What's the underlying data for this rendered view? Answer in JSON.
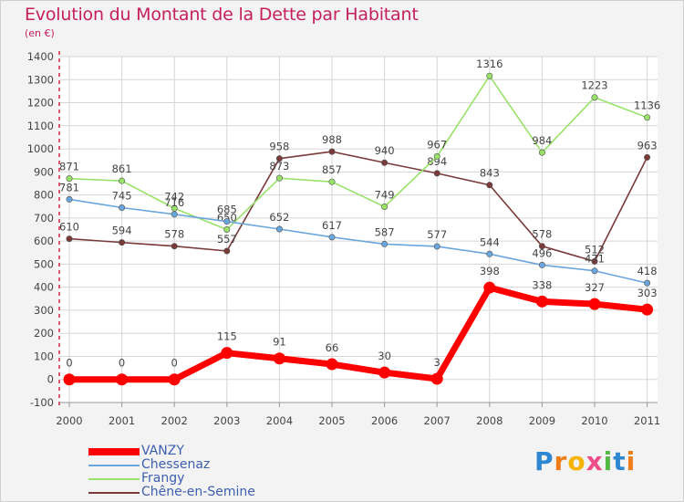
{
  "title": "Evolution du Montant de la Dette par Habitant",
  "unit": "(en €)",
  "logo_text": "Proxiti",
  "chart_data": {
    "type": "line",
    "x": [
      "2000",
      "2001",
      "2002",
      "2003",
      "2004",
      "2005",
      "2006",
      "2007",
      "2008",
      "2009",
      "2010",
      "2011"
    ],
    "ylim": [
      -100,
      1400
    ],
    "yticks": [
      -100,
      0,
      100,
      200,
      300,
      400,
      500,
      600,
      700,
      800,
      900,
      1000,
      1100,
      1200,
      1300,
      1400
    ],
    "grid": true,
    "legend_position": "bottom-left",
    "series": [
      {
        "name": "VANZY",
        "color": "#ff0000",
        "values": [
          0,
          0,
          0,
          115,
          91,
          66,
          30,
          3,
          398,
          338,
          327,
          303
        ]
      },
      {
        "name": "Chessenaz",
        "color": "#6aa6dc",
        "values": [
          781,
          745,
          716,
          685,
          652,
          617,
          587,
          577,
          544,
          496,
          471,
          418
        ]
      },
      {
        "name": "Frangy",
        "color": "#99e26a",
        "values": [
          871,
          861,
          742,
          650,
          873,
          857,
          749,
          967,
          1316,
          984,
          1223,
          1136
        ]
      },
      {
        "name": "Chêne-en-Semine",
        "color": "#7a3a3a",
        "values": [
          610,
          594,
          578,
          557,
          958,
          988,
          940,
          894,
          843,
          578,
          512,
          963
        ]
      }
    ]
  }
}
